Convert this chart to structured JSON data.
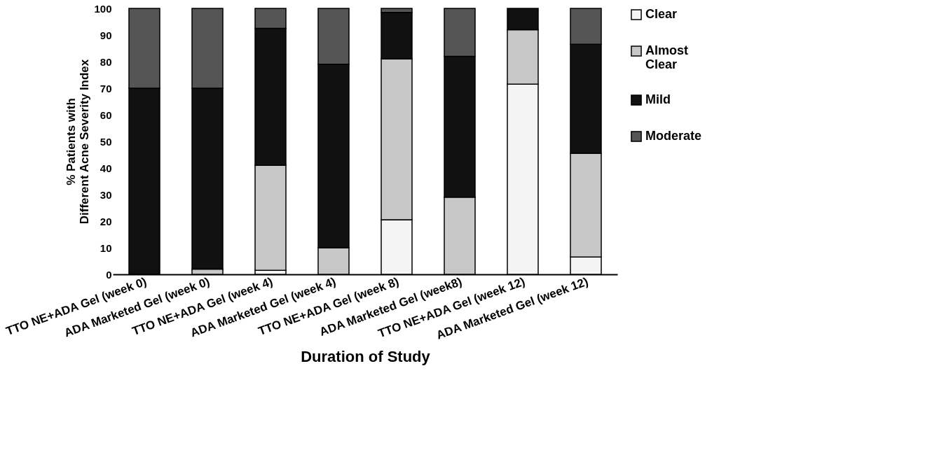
{
  "chart_data": {
    "type": "bar",
    "stacked": true,
    "xlabel": "Duration of Study",
    "ylabel": "% Patients with\nDifferent Acne Severity Index",
    "categories": [
      "TTO NE+ADA Gel (week 0)",
      "ADA  Marketed Gel (week 0)",
      "TTO NE+ADA Gel (week 4)",
      "ADA Marketed  Gel (week 4)",
      "TTO NE+ADA Gel (week 8)",
      "ADA Marketed Gel (week8)",
      "TTO NE+ADA Gel (week 12)",
      "ADA Marketed  Gel (week 12)"
    ],
    "series": [
      {
        "name": "Clear",
        "color": "#f4f4f4",
        "values": [
          0,
          0,
          1.5,
          0,
          20.5,
          0,
          71.5,
          6.5
        ]
      },
      {
        "name": "Almost Clear",
        "color": "#c8c8c8",
        "values": [
          0,
          2,
          39.5,
          10,
          60.5,
          29,
          20.5,
          39
        ]
      },
      {
        "name": "Mild",
        "color": "#111111",
        "values": [
          70,
          68,
          51.5,
          69,
          17.5,
          53,
          8,
          41
        ]
      },
      {
        "name": "Moderate",
        "color": "#555555",
        "values": [
          30,
          30,
          7.5,
          21,
          1.5,
          18,
          0,
          13.5
        ]
      }
    ],
    "ylim": [
      0,
      100
    ],
    "yticks": [
      0,
      10,
      20,
      30,
      40,
      50,
      60,
      70,
      80,
      90,
      100
    ],
    "grid": false,
    "legend": "right"
  }
}
